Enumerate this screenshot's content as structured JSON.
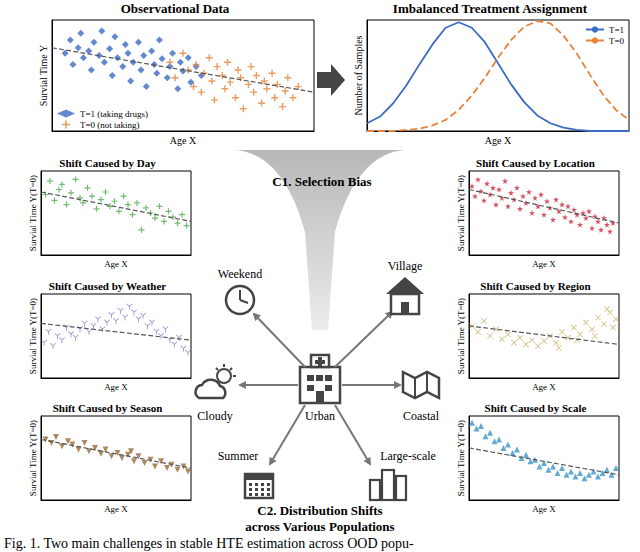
{
  "chart_data": [
    {
      "type": "scatter",
      "title": "Observational Data",
      "xlabel": "Age X",
      "ylabel": "Survial Time Y",
      "xlim": [
        0,
        100
      ],
      "ylim": [
        0,
        100
      ],
      "tick_labels": false,
      "grid": false,
      "legend": "lower left",
      "series": [
        {
          "name": "T=1 (taking drugs)",
          "color": "#3b6cc4",
          "marker": "diamond",
          "x": [
            5,
            7,
            8,
            10,
            11,
            12,
            14,
            15,
            16,
            18,
            19,
            20,
            22,
            23,
            24,
            25,
            27,
            28,
            29,
            30,
            31,
            33,
            34,
            35,
            36,
            38,
            39,
            40,
            41,
            42,
            44,
            45,
            46,
            48,
            49,
            50,
            52,
            53,
            55,
            57
          ],
          "values": [
            70,
            82,
            60,
            75,
            88,
            66,
            72,
            55,
            80,
            68,
            90,
            62,
            74,
            50,
            85,
            66,
            58,
            78,
            70,
            45,
            62,
            80,
            55,
            68,
            40,
            72,
            60,
            52,
            82,
            65,
            48,
            58,
            70,
            38,
            62,
            54,
            66,
            44,
            58,
            50
          ]
        },
        {
          "name": "T=0 (not taking)",
          "color": "#e8833a",
          "marker": "plus",
          "x": [
            45,
            47,
            50,
            52,
            54,
            55,
            57,
            58,
            60,
            61,
            62,
            63,
            65,
            66,
            67,
            68,
            70,
            71,
            72,
            73,
            75,
            76,
            77,
            78,
            80,
            81,
            82,
            84,
            85,
            86,
            88,
            89,
            90,
            92,
            94
          ],
          "values": [
            62,
            48,
            70,
            55,
            40,
            60,
            35,
            52,
            66,
            45,
            28,
            58,
            50,
            38,
            62,
            44,
            30,
            55,
            48,
            20,
            42,
            58,
            35,
            50,
            25,
            45,
            38,
            52,
            30,
            42,
            22,
            36,
            48,
            30,
            40
          ]
        },
        {
          "type": "line",
          "color": "#555555",
          "line_style": "dashed",
          "x": [
            0,
            100
          ],
          "values": [
            75,
            35
          ]
        }
      ]
    },
    {
      "type": "line",
      "title": "Imbalanced Treatment Assignment",
      "xlabel": "Age X",
      "ylabel": "Number of Samples",
      "xlim": [
        0,
        100
      ],
      "ylim": [
        0,
        100
      ],
      "tick_labels": false,
      "grid": false,
      "legend": "upper right",
      "x": [
        0,
        5,
        10,
        15,
        20,
        25,
        30,
        35,
        40,
        45,
        50,
        55,
        60,
        65,
        70,
        75,
        80,
        85,
        90,
        95,
        100
      ],
      "series": [
        {
          "name": "T=1",
          "color": "#3b6cc4",
          "line_style": "solid",
          "values": [
            7,
            13,
            25,
            41,
            60,
            78,
            93,
            98,
            93,
            80,
            61,
            42,
            26,
            14,
            7,
            3,
            1,
            0,
            0,
            0,
            0
          ]
        },
        {
          "name": "T=0",
          "color": "#e8833a",
          "line_style": "dashed",
          "values": [
            0,
            0,
            0,
            1,
            2,
            5,
            10,
            19,
            32,
            48,
            66,
            82,
            94,
            99,
            97,
            86,
            70,
            51,
            33,
            19,
            10
          ]
        }
      ]
    },
    {
      "type": "scatter",
      "title": "Shift Caused by Day",
      "xlabel": "Age X",
      "ylabel": "Survial Time Y(T=0)",
      "xlim": [
        0,
        100
      ],
      "ylim": [
        0,
        100
      ],
      "tick_labels": false,
      "grid": false,
      "series": [
        {
          "color": "#4cae4c",
          "marker": "plus",
          "x": [
            3,
            6,
            9,
            12,
            14,
            17,
            20,
            23,
            26,
            28,
            31,
            34,
            37,
            40,
            43,
            46,
            49,
            52,
            55,
            58,
            61,
            64,
            67,
            70,
            73,
            76,
            79,
            82,
            85,
            88,
            91,
            94,
            97
          ],
          "values": [
            72,
            88,
            65,
            78,
            84,
            60,
            74,
            90,
            68,
            62,
            80,
            70,
            55,
            66,
            75,
            58,
            64,
            52,
            70,
            60,
            48,
            62,
            30,
            56,
            50,
            44,
            58,
            40,
            52,
            45,
            38,
            48,
            35
          ]
        },
        {
          "type": "line",
          "color": "#555555",
          "line_style": "dashed",
          "x": [
            0,
            100
          ],
          "values": [
            75,
            40
          ]
        }
      ]
    },
    {
      "type": "scatter",
      "title": "Shift Caused by Weather",
      "xlabel": "Age X",
      "ylabel": "Survial Time Y(T=0)",
      "xlim": [
        0,
        100
      ],
      "ylim": [
        0,
        100
      ],
      "tick_labels": false,
      "grid": false,
      "series": [
        {
          "color": "#6a6ac8",
          "marker": "tri_down",
          "x": [
            2,
            5,
            8,
            11,
            14,
            17,
            20,
            23,
            26,
            29,
            32,
            35,
            38,
            41,
            44,
            47,
            50,
            53,
            56,
            59,
            62,
            65,
            68,
            71,
            74,
            77,
            80,
            83,
            86,
            89,
            92,
            95,
            98
          ],
          "values": [
            42,
            55,
            38,
            50,
            45,
            60,
            52,
            48,
            58,
            65,
            55,
            62,
            70,
            58,
            66,
            75,
            68,
            80,
            72,
            85,
            78,
            70,
            74,
            62,
            66,
            55,
            50,
            58,
            45,
            40,
            48,
            35,
            30
          ]
        },
        {
          "type": "line",
          "color": "#555555",
          "line_style": "dashed",
          "x": [
            0,
            100
          ],
          "values": [
            65,
            45
          ]
        }
      ]
    },
    {
      "type": "scatter",
      "title": "Shift Caused by Season",
      "xlabel": "Age X",
      "ylabel": "Survial Time Y(T=0)",
      "xlim": [
        0,
        100
      ],
      "ylim": [
        0,
        100
      ],
      "tick_labels": false,
      "grid": false,
      "series": [
        {
          "color": "#9a6a3a",
          "marker": "triangle_down",
          "x": [
            3,
            7,
            10,
            14,
            18,
            21,
            25,
            29,
            32,
            36,
            40,
            43,
            47,
            51,
            54,
            58,
            62,
            65,
            69,
            73,
            76,
            80,
            84,
            87,
            91,
            95,
            98,
            60
          ],
          "values": [
            72,
            68,
            75,
            64,
            70,
            66,
            60,
            68,
            58,
            62,
            55,
            60,
            52,
            56,
            50,
            54,
            46,
            52,
            44,
            48,
            40,
            46,
            38,
            42,
            36,
            40,
            34,
            58
          ]
        },
        {
          "type": "line",
          "color": "#555555",
          "line_style": "dashed",
          "x": [
            0,
            100
          ],
          "values": [
            72,
            38
          ]
        }
      ]
    },
    {
      "type": "scatter",
      "title": "Shift Caused by Location",
      "xlabel": "Age X",
      "ylabel": "Survial Time Y(T=0)",
      "xlim": [
        0,
        100
      ],
      "ylim": [
        0,
        100
      ],
      "tick_labels": false,
      "grid": false,
      "series": [
        {
          "color": "#c8283c",
          "marker": "star",
          "x": [
            2,
            4,
            6,
            8,
            10,
            12,
            14,
            16,
            18,
            20,
            22,
            24,
            26,
            28,
            30,
            32,
            34,
            36,
            38,
            40,
            42,
            44,
            46,
            48,
            50,
            52,
            54,
            56,
            58,
            60,
            62,
            64,
            66,
            68,
            70,
            72,
            74,
            76,
            78,
            80,
            82,
            84,
            86,
            88,
            90,
            92,
            94,
            96
          ],
          "values": [
            82,
            70,
            90,
            76,
            65,
            85,
            72,
            80,
            60,
            78,
            68,
            88,
            58,
            74,
            66,
            80,
            55,
            70,
            62,
            75,
            50,
            68,
            58,
            72,
            48,
            64,
            56,
            42,
            66,
            52,
            60,
            45,
            58,
            40,
            54,
            48,
            36,
            50,
            44,
            52,
            32,
            46,
            40,
            30,
            44,
            36,
            28,
            38
          ]
        },
        {
          "type": "line",
          "color": "#555555",
          "line_style": "dashed",
          "x": [
            0,
            100
          ],
          "values": [
            78,
            38
          ]
        }
      ]
    },
    {
      "type": "scatter",
      "title": "Shift Caused by Region",
      "xlabel": "Age X",
      "ylabel": "Survial Time Y(T=0)",
      "xlim": [
        0,
        100
      ],
      "ylim": [
        0,
        100
      ],
      "tick_labels": false,
      "grid": false,
      "series": [
        {
          "color": "#c9b26a",
          "marker": "x",
          "x": [
            2,
            6,
            10,
            14,
            18,
            22,
            26,
            30,
            34,
            38,
            42,
            46,
            50,
            54,
            58,
            62,
            66,
            70,
            74,
            78,
            82,
            86,
            90,
            94,
            98,
            60,
            72,
            84,
            92,
            96
          ],
          "values": [
            62,
            55,
            68,
            50,
            58,
            46,
            52,
            42,
            48,
            40,
            45,
            38,
            44,
            50,
            42,
            55,
            48,
            60,
            52,
            66,
            58,
            72,
            64,
            78,
            70,
            36,
            45,
            50,
            82,
            60
          ]
        },
        {
          "type": "line",
          "color": "#555555",
          "line_style": "dashed",
          "x": [
            0,
            100
          ],
          "values": [
            62,
            40
          ]
        }
      ]
    },
    {
      "type": "scatter",
      "title": "Shift Caused by Scale",
      "xlabel": "Age X",
      "ylabel": "Survial Time Y(T=0)",
      "xlim": [
        0,
        100
      ],
      "ylim": [
        0,
        100
      ],
      "tick_labels": false,
      "grid": false,
      "series": [
        {
          "color": "#3a96c8",
          "marker": "triangle",
          "x": [
            2,
            5,
            8,
            11,
            14,
            17,
            20,
            23,
            26,
            29,
            32,
            35,
            38,
            41,
            44,
            47,
            50,
            53,
            56,
            59,
            62,
            65,
            68,
            71,
            74,
            77,
            80,
            83,
            86,
            89,
            92,
            95,
            98
          ],
          "values": [
            92,
            85,
            88,
            76,
            80,
            70,
            72,
            62,
            66,
            56,
            60,
            50,
            54,
            46,
            48,
            40,
            44,
            36,
            40,
            32,
            38,
            30,
            34,
            28,
            32,
            26,
            30,
            34,
            28,
            32,
            36,
            30,
            38
          ]
        },
        {
          "type": "line",
          "color": "#555555",
          "line_style": "dashed",
          "x": [
            0,
            100
          ],
          "values": [
            62,
            30
          ]
        }
      ]
    }
  ],
  "diagram": {
    "challenge_1": "C1. Selection Bias",
    "challenge_2": [
      "C2. Distribution Shifts",
      "across Various Populations"
    ],
    "center": "Urban",
    "populations": [
      "Weekend",
      "Village",
      "Cloudy",
      "Coastal",
      "Summer",
      "Large-scale"
    ],
    "caption": "Fig. 1.  Two main challenges in stable HTE estimation across OOD popu-"
  }
}
